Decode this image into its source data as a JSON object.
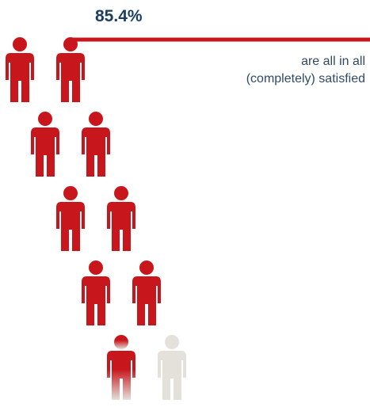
{
  "chart_data": {
    "type": "pictogram",
    "value": 85.4,
    "value_label": "85.4%",
    "caption_lines": [
      "are all in all",
      "(completely) satisfied"
    ],
    "icon": "person-icon",
    "total_icons": 10,
    "rows": 5,
    "icons_per_row": 2,
    "filled_color": "#c8161d",
    "empty_color": "#e4e0da",
    "leader_line_color": "#c8161d"
  }
}
